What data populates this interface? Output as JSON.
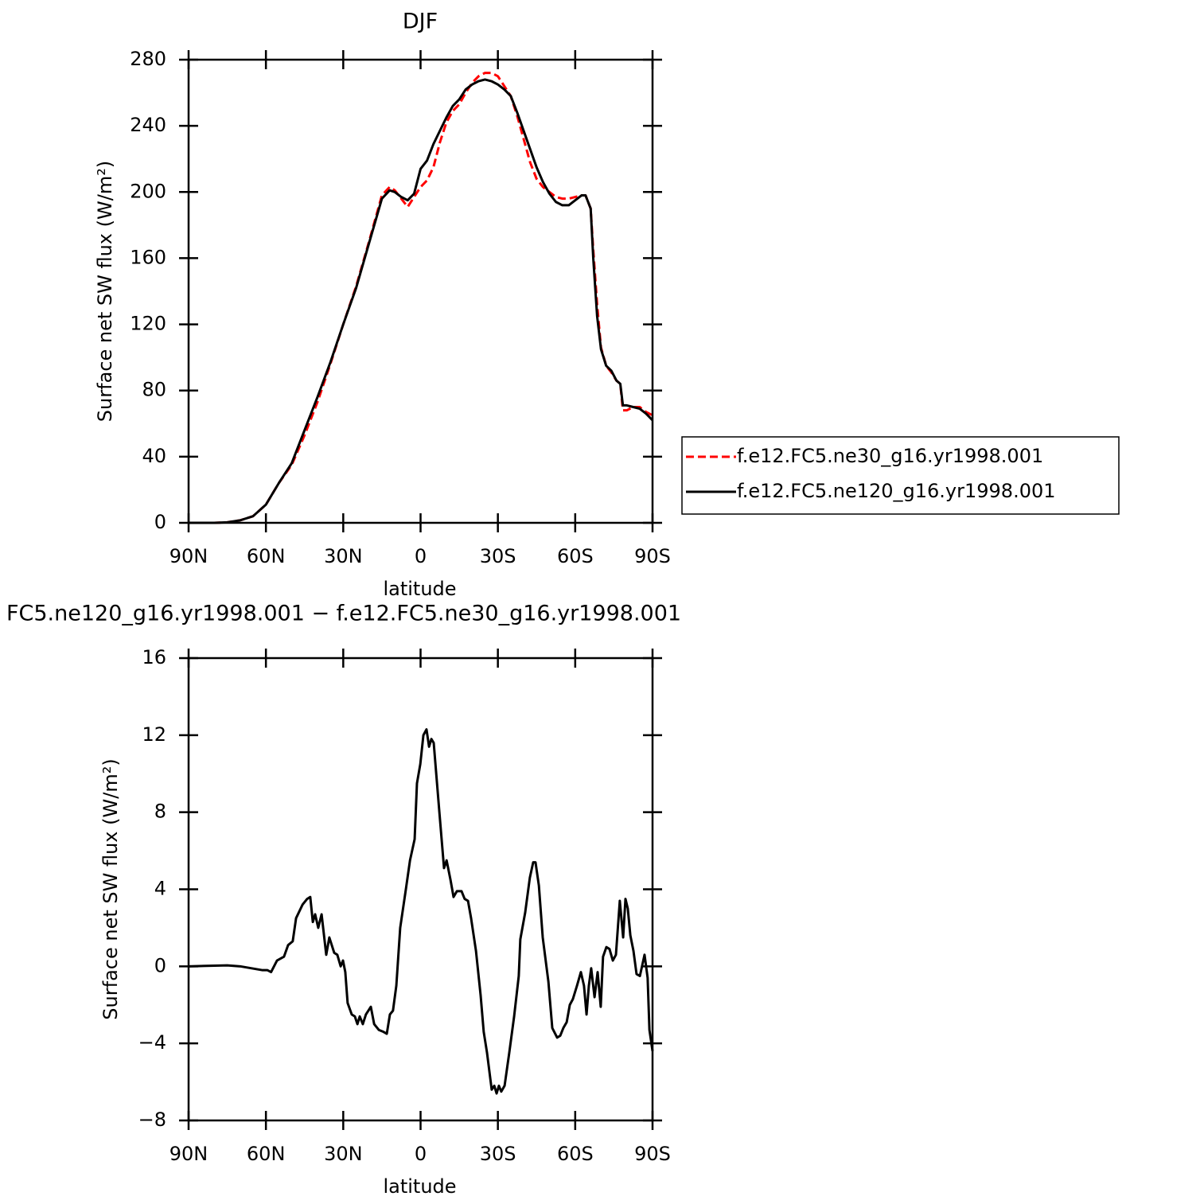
{
  "chart_data": [
    {
      "type": "line",
      "title": "DJF",
      "xlabel": "latitude",
      "ylabel": "Surface net SW flux (W/m²)",
      "xlim": [
        90,
        -90
      ],
      "xticks": [
        {
          "value": 90,
          "label": "90N"
        },
        {
          "value": 60,
          "label": "60N"
        },
        {
          "value": 30,
          "label": "30N"
        },
        0,
        {
          "value": -30,
          "label": "30S"
        },
        {
          "value": -60,
          "label": "60S"
        },
        {
          "value": -90,
          "label": "90S"
        }
      ],
      "ylim": [
        0,
        280
      ],
      "yticks": [
        0,
        40,
        80,
        120,
        160,
        200,
        240,
        280
      ],
      "legend": "right",
      "x": [
        90,
        85,
        80,
        75,
        70,
        65,
        60,
        55,
        50,
        45,
        40,
        35,
        30,
        25,
        20,
        15,
        12,
        10,
        7.5,
        5,
        2.5,
        0,
        -2.5,
        -5,
        -7.5,
        -10,
        -12.5,
        -15,
        -17.5,
        -20,
        -22.5,
        -25,
        -27.5,
        -30,
        -32.5,
        -35,
        -37.5,
        -40,
        -42.5,
        -45,
        -47.5,
        -50,
        -52.5,
        -55,
        -57.5,
        -60,
        -62.5,
        -64,
        -66,
        -67,
        -68.5,
        -70,
        -72,
        -74,
        -76,
        -77.5,
        -78.5,
        -80,
        -82.5,
        -85,
        -87.5,
        -90
      ],
      "series": [
        {
          "name": "f.e12.FC5.ne30_g16.yr1998.001",
          "color": "#ff0000",
          "dash": "dashed",
          "values": [
            0,
            0,
            0,
            0.3,
            1.5,
            4,
            11,
            24,
            35,
            53,
            73,
            96,
            120,
            143,
            170,
            198,
            203,
            201,
            196,
            191,
            197,
            203,
            207,
            215,
            230,
            242,
            249,
            253,
            260,
            266,
            270,
            272,
            272,
            270,
            264,
            258,
            246,
            232,
            218,
            208,
            203,
            200,
            197,
            196,
            196,
            197,
            198,
            198,
            190,
            165,
            132,
            106,
            95,
            91,
            86,
            84,
            68,
            68,
            70,
            70,
            67,
            65
          ]
        },
        {
          "name": "f.e12.FC5.ne120_g16.yr1998.001",
          "color": "#000000",
          "dash": "solid",
          "values": [
            0,
            0,
            0,
            0.3,
            1.5,
            4,
            11,
            24,
            36,
            56,
            76,
            97,
            120,
            142,
            169,
            196,
            201,
            200,
            197,
            195,
            199,
            214,
            219,
            229,
            237,
            245,
            252,
            256,
            262,
            265,
            267,
            268,
            267,
            265,
            262,
            258,
            248,
            237,
            226,
            215,
            206,
            199,
            194,
            192,
            192,
            195,
            198,
            198,
            190,
            160,
            125,
            105,
            95,
            92,
            86,
            84,
            71,
            71,
            70,
            69,
            66,
            62
          ]
        }
      ]
    },
    {
      "type": "line",
      "title": "FC5.ne120_g16.yr1998.001 − f.e12.FC5.ne30_g16.yr1998.001",
      "xlabel": "latitude",
      "ylabel": "Surface net SW flux (W/m²)",
      "xlim": [
        90,
        -90
      ],
      "xticks": [
        {
          "value": 90,
          "label": "90N"
        },
        {
          "value": 60,
          "label": "60N"
        },
        {
          "value": 30,
          "label": "30N"
        },
        0,
        {
          "value": -30,
          "label": "30S"
        },
        {
          "value": -60,
          "label": "60S"
        },
        {
          "value": -90,
          "label": "90S"
        }
      ],
      "ylim": [
        -8,
        16
      ],
      "yticks": [
        {
          "value": -8,
          "label": "−8"
        },
        {
          "value": -4,
          "label": "−4"
        },
        0,
        4,
        8,
        12,
        16
      ],
      "x": [
        90,
        75,
        70,
        61.3,
        59.4,
        58,
        55.7,
        53,
        51.4,
        49.6,
        48.3,
        45.8,
        44,
        42.8,
        41.8,
        40.9,
        39.7,
        38.4,
        36.6,
        35.4,
        33.5,
        32.3,
        31,
        30.1,
        29.2,
        28.3,
        26.7,
        25.5,
        24.5,
        23.6,
        22.4,
        21.2,
        19.3,
        18,
        16.2,
        14.4,
        13.1,
        11.9,
        10.7,
        9.4,
        7.9,
        5.7,
        4.1,
        2.3,
        1.4,
        0.1,
        -1.1,
        -2.3,
        -3.3,
        -4.2,
        -5.1,
        -7.3,
        -9.1,
        -10.1,
        -11.6,
        -12.8,
        -14.1,
        -15.9,
        -17.1,
        -18.4,
        -19.6,
        -21.5,
        -23.3,
        -24.5,
        -25.8,
        -27.6,
        -28.6,
        -29.5,
        -30.4,
        -31.3,
        -32.6,
        -34.4,
        -36.3,
        -38.1,
        -38.7,
        -40.6,
        -42.4,
        -43.7,
        -44.6,
        -45.9,
        -47.4,
        -49.6,
        -51.1,
        -53,
        -54.2,
        -55.4,
        -56.7,
        -57.9,
        -59.1,
        -60.7,
        -62.2,
        -63.4,
        -64.4,
        -65.3,
        -66.2,
        -67.5,
        -68.7,
        -69.9,
        -70.8,
        -72.1,
        -73.3,
        -74.6,
        -75.8,
        -77.3,
        -78.6,
        -79.5,
        -80.4,
        -81.4,
        -82.6,
        -83.8,
        -85.1,
        -86.9,
        -88.1,
        -88.8,
        -90
      ],
      "series": [
        {
          "color": "#000000",
          "dash": "solid",
          "values": [
            0,
            0.05,
            0,
            -0.2,
            -0.2,
            -0.3,
            0.3,
            0.5,
            1.1,
            1.3,
            2.5,
            3.2,
            3.5,
            3.6,
            2.3,
            2.7,
            2.0,
            2.7,
            0.6,
            1.5,
            0.7,
            0.6,
            0.0,
            0.3,
            -0.3,
            -1.9,
            -2.5,
            -2.6,
            -3.0,
            -2.6,
            -3.0,
            -2.5,
            -2.1,
            -3.0,
            -3.3,
            -3.4,
            -3.5,
            -2.5,
            -2.3,
            -1.0,
            2.0,
            4.0,
            5.5,
            6.6,
            9.5,
            10.5,
            12.0,
            12.3,
            11.4,
            11.8,
            11.6,
            8.0,
            5.1,
            5.5,
            4.5,
            3.6,
            3.9,
            3.9,
            3.5,
            3.4,
            2.5,
            0.8,
            -1.5,
            -3.4,
            -4.5,
            -6.4,
            -6.2,
            -6.6,
            -6.2,
            -6.5,
            -6.2,
            -4.5,
            -2.6,
            -0.5,
            1.4,
            2.8,
            4.6,
            5.4,
            5.4,
            4.2,
            1.5,
            -0.8,
            -3.2,
            -3.7,
            -3.6,
            -3.2,
            -2.9,
            -2.0,
            -1.7,
            -1.0,
            -0.3,
            -1.0,
            -2.5,
            -1.0,
            -0.1,
            -1.6,
            -0.3,
            -2.1,
            0.5,
            1.0,
            0.9,
            0.3,
            0.6,
            3.4,
            1.5,
            3.5,
            3.0,
            1.6,
            0.8,
            -0.4,
            -0.5,
            0.6,
            -0.6,
            -3.3,
            -4.4
          ]
        }
      ]
    }
  ]
}
